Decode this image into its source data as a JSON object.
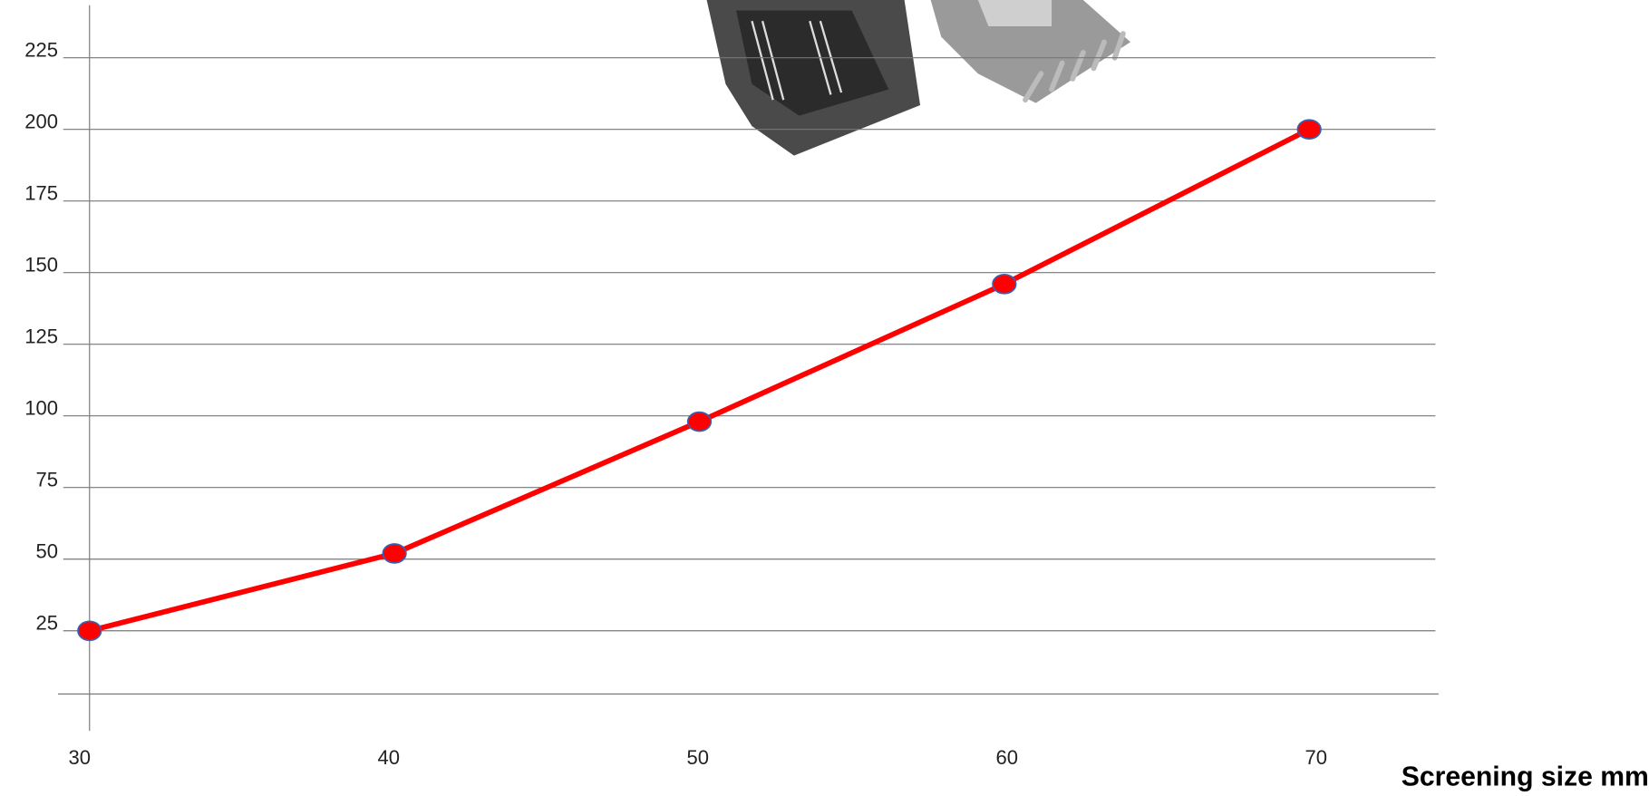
{
  "chart_data": {
    "type": "line",
    "x_label": "Screening size mm",
    "categories": [
      "30",
      "40",
      "50",
      "60",
      "70"
    ],
    "series": [
      {
        "color": "#ff0000",
        "values": [
          25,
          52,
          98,
          146,
          200
        ]
      }
    ],
    "ylim": [
      0,
      240
    ],
    "yticks": [
      25,
      50,
      75,
      100,
      125,
      150,
      175,
      200,
      225
    ],
    "grid": true
  }
}
